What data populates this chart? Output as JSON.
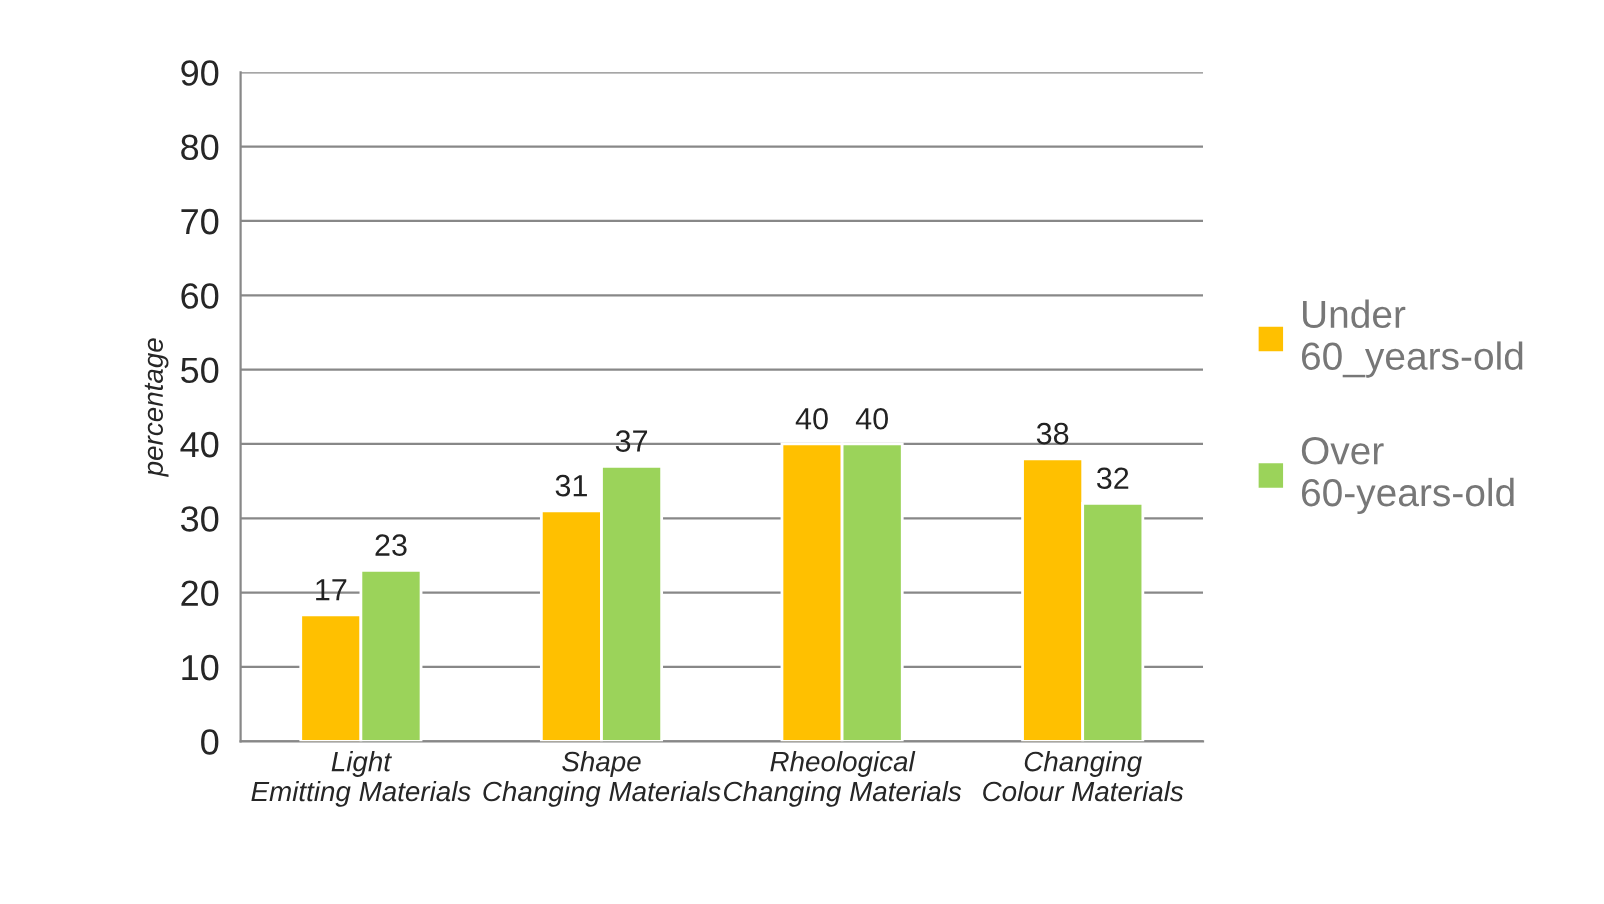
{
  "chart_data": {
    "type": "bar",
    "ylabel": "percentage",
    "categories": [
      "Light Emitting Materials",
      "Shape Changing Materials",
      "Rheological Changing Materials",
      "Changing Colour Materials"
    ],
    "series": [
      {
        "name": "Under 60_years-old",
        "color": "#ffc000",
        "values": [
          17,
          31,
          40,
          38
        ]
      },
      {
        "name": "Over 60-years-old",
        "color": "#9bd35a",
        "values": [
          23,
          37,
          40,
          32
        ]
      }
    ],
    "ylim": [
      0,
      90
    ],
    "yticks": [
      0,
      10,
      20,
      30,
      40,
      50,
      60,
      70,
      80,
      90
    ],
    "grid": "y",
    "legend": "right",
    "data_labels": true
  }
}
